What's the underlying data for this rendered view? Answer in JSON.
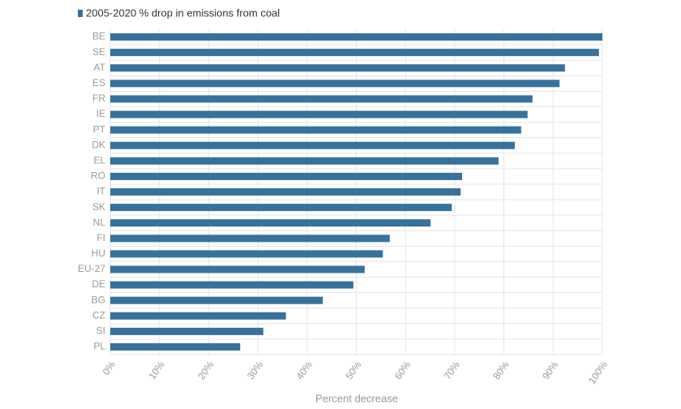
{
  "chart_data": {
    "type": "bar",
    "orientation": "horizontal",
    "categories": [
      "BE",
      "SE",
      "AT",
      "ES",
      "FR",
      "IE",
      "PT",
      "DK",
      "EL",
      "RO",
      "IT",
      "SK",
      "NL",
      "FI",
      "HU",
      "EU-27",
      "DE",
      "BG",
      "CZ",
      "SI",
      "PL"
    ],
    "series": [
      {
        "name": "2005-2020 % drop in emissions from coal",
        "color": "#37729c",
        "values": [
          100,
          99.3,
          92.4,
          91.3,
          85.8,
          84.8,
          83.5,
          82.2,
          78.9,
          71.5,
          71.2,
          69.4,
          65.1,
          56.8,
          55.4,
          51.7,
          49.4,
          43.2,
          35.7,
          31.1,
          26.4
        ]
      }
    ],
    "x_label": "Percent decrease",
    "xlim": [
      0,
      100
    ],
    "xticks": [
      {
        "value": 0,
        "label": "0%"
      },
      {
        "value": 10,
        "label": "10%"
      },
      {
        "value": 20,
        "label": "20%"
      },
      {
        "value": 30,
        "label": "30%"
      },
      {
        "value": 40,
        "label": "40%"
      },
      {
        "value": 50,
        "label": "50%"
      },
      {
        "value": 60,
        "label": "60%"
      },
      {
        "value": 70,
        "label": "70%"
      },
      {
        "value": 80,
        "label": "80%"
      },
      {
        "value": 90,
        "label": "90%"
      },
      {
        "value": 100,
        "label": "100%"
      }
    ],
    "grid": true
  }
}
